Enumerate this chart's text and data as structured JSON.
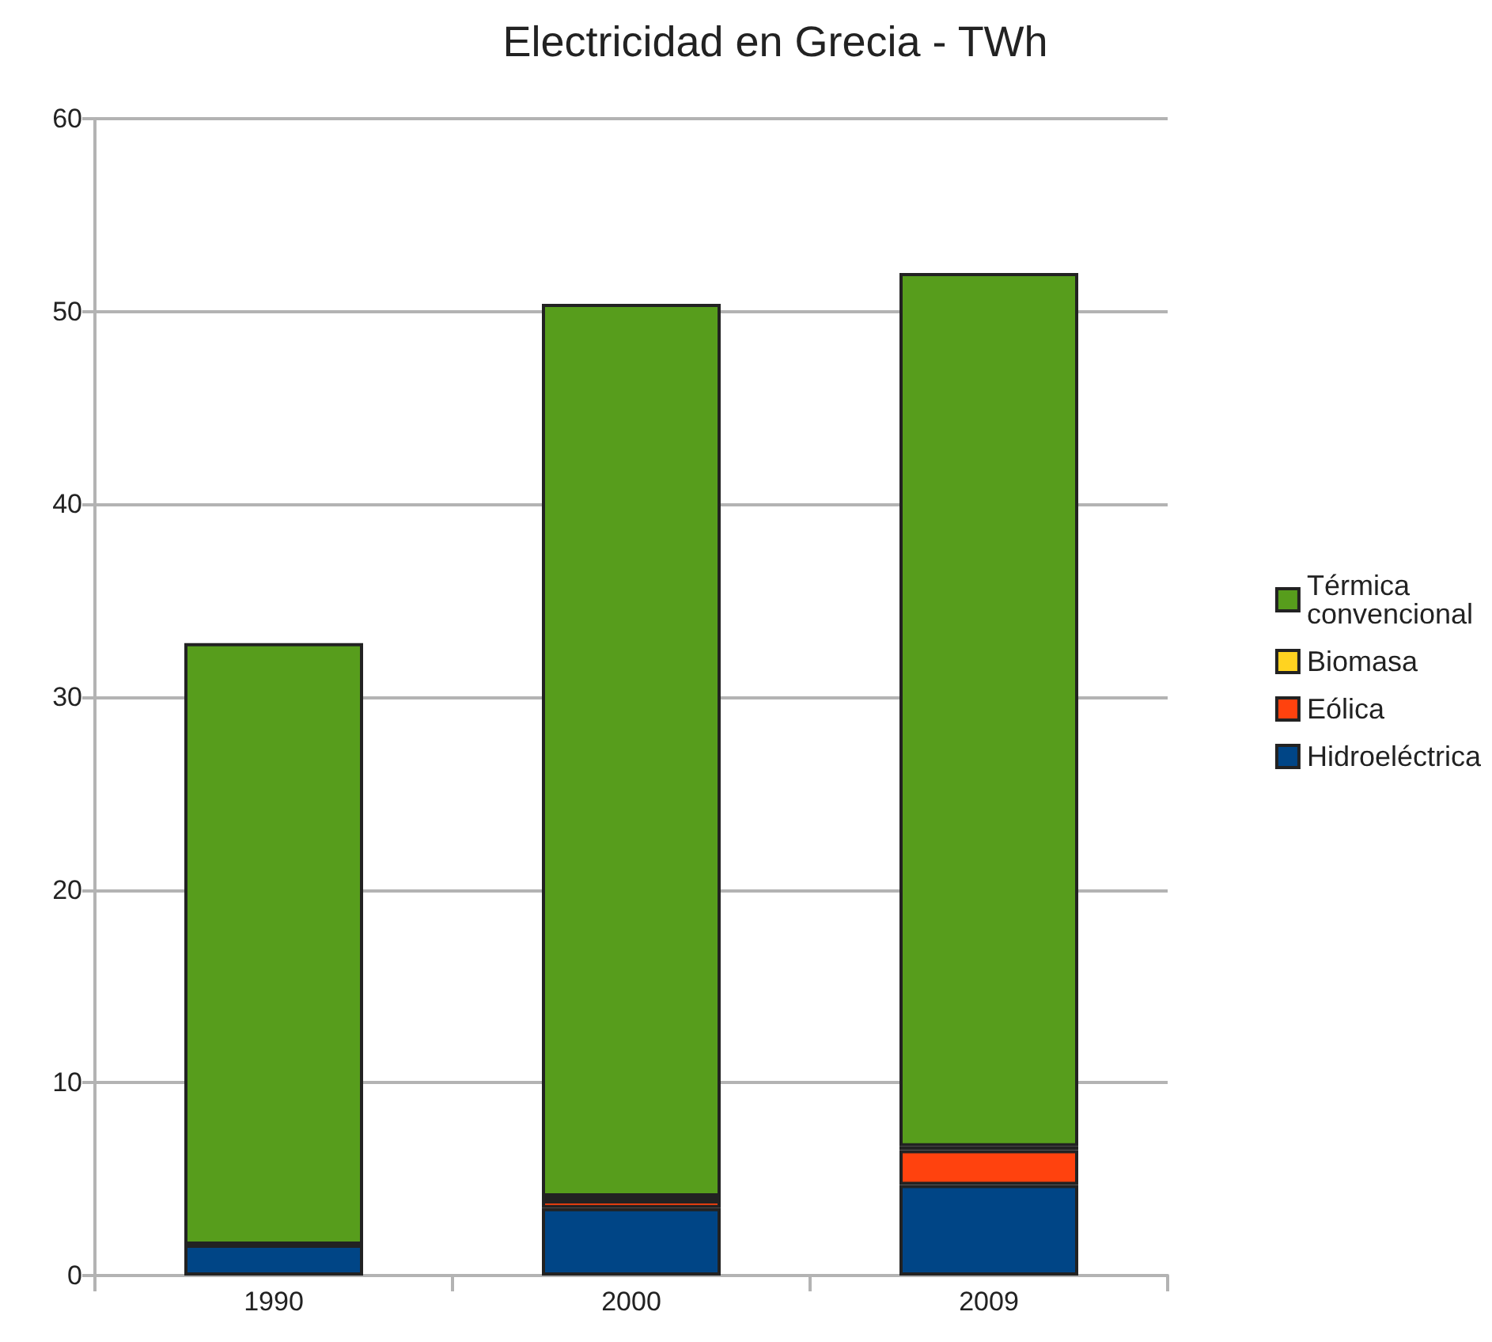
{
  "chart_data": {
    "type": "bar",
    "title": "Electricidad en Grecia - TWh",
    "categories": [
      "1990",
      "2000",
      "2009"
    ],
    "stacked": true,
    "series": [
      {
        "name": "Hidroeléctrica",
        "color": "#004586",
        "values": [
          1.6,
          3.5,
          4.7
        ]
      },
      {
        "name": "Eólica",
        "color": "#ff420e",
        "values": [
          0,
          0.4,
          1.8
        ]
      },
      {
        "name": "Biomasa",
        "color": "#ffd320",
        "values": [
          0,
          0.2,
          0.2
        ]
      },
      {
        "name": "Térmica convencional",
        "color": "#579d1c",
        "values": [
          31.2,
          46.3,
          45.3
        ]
      }
    ],
    "ylim": [
      0,
      60
    ],
    "yticks": [
      0,
      10,
      20,
      30,
      40,
      50,
      60
    ],
    "grid": "y",
    "legend": "right"
  }
}
